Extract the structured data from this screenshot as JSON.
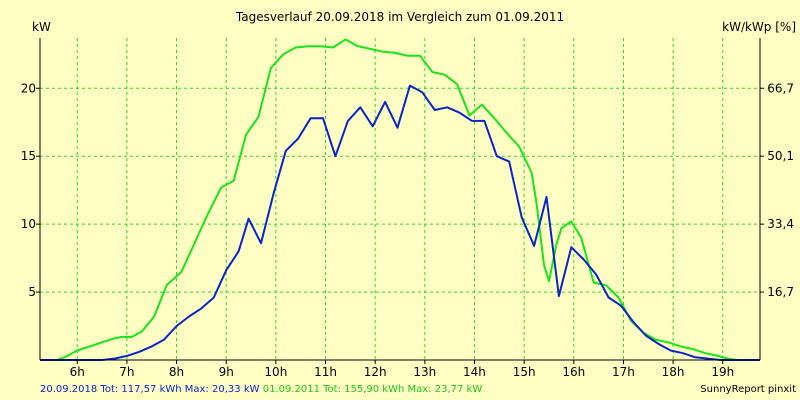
{
  "chart_data": {
    "type": "line",
    "title": "Tagesverlauf 20.09.2018 im Vergleich zum 01.09.2011",
    "ylabel": "kW",
    "ylabel_right": "kW/kWp [%]",
    "ylim": [
      0,
      23.7
    ],
    "xlim": [
      5.25,
      19.75
    ],
    "y_ticks": [
      5,
      10,
      15,
      20
    ],
    "y_right_ticks": [
      "16,7",
      "33,4",
      "50,1",
      "66,7"
    ],
    "x_ticks": [
      {
        "x": 6,
        "label": "6h"
      },
      {
        "x": 7,
        "label": "7h"
      },
      {
        "x": 8,
        "label": "8h"
      },
      {
        "x": 9,
        "label": "9h"
      },
      {
        "x": 10,
        "label": "10h"
      },
      {
        "x": 11,
        "label": "11h"
      },
      {
        "x": 12,
        "label": "12h"
      },
      {
        "x": 13,
        "label": "13h"
      },
      {
        "x": 14,
        "label": "14h"
      },
      {
        "x": 15,
        "label": "15h"
      },
      {
        "x": 16,
        "label": "16h"
      },
      {
        "x": 17,
        "label": "17h"
      },
      {
        "x": 18,
        "label": "18h"
      },
      {
        "x": 19,
        "label": "19h"
      }
    ],
    "grid": true,
    "series": [
      {
        "name": "01.09.2011",
        "color": "#19e419",
        "points": [
          [
            5.25,
            0
          ],
          [
            5.6,
            0
          ],
          [
            5.8,
            0.3
          ],
          [
            6.0,
            0.7
          ],
          [
            6.25,
            1.0
          ],
          [
            6.5,
            1.3
          ],
          [
            6.75,
            1.6
          ],
          [
            6.9,
            1.7
          ],
          [
            7.1,
            1.7
          ],
          [
            7.3,
            2.1
          ],
          [
            7.55,
            3.2
          ],
          [
            7.8,
            5.5
          ],
          [
            8.1,
            6.5
          ],
          [
            8.35,
            8.5
          ],
          [
            8.6,
            10.5
          ],
          [
            8.9,
            12.7
          ],
          [
            9.15,
            13.2
          ],
          [
            9.4,
            16.6
          ],
          [
            9.65,
            17.9
          ],
          [
            9.9,
            21.5
          ],
          [
            10.15,
            22.5
          ],
          [
            10.4,
            23.0
          ],
          [
            10.65,
            23.1
          ],
          [
            10.9,
            23.1
          ],
          [
            11.15,
            23.0
          ],
          [
            11.4,
            23.6
          ],
          [
            11.65,
            23.1
          ],
          [
            11.9,
            22.9
          ],
          [
            12.15,
            22.7
          ],
          [
            12.4,
            22.6
          ],
          [
            12.65,
            22.4
          ],
          [
            12.9,
            22.4
          ],
          [
            13.15,
            21.2
          ],
          [
            13.4,
            21.0
          ],
          [
            13.65,
            20.3
          ],
          [
            13.9,
            18.0
          ],
          [
            14.15,
            18.8
          ],
          [
            14.4,
            17.8
          ],
          [
            14.65,
            16.7
          ],
          [
            14.9,
            15.7
          ],
          [
            15.15,
            13.8
          ],
          [
            15.25,
            11.5
          ],
          [
            15.4,
            7.0
          ],
          [
            15.5,
            5.8
          ],
          [
            15.65,
            8.5
          ],
          [
            15.75,
            9.7
          ],
          [
            15.95,
            10.2
          ],
          [
            16.15,
            9.0
          ],
          [
            16.4,
            5.7
          ],
          [
            16.65,
            5.5
          ],
          [
            16.9,
            4.6
          ],
          [
            17.15,
            2.9
          ],
          [
            17.4,
            2.0
          ],
          [
            17.65,
            1.5
          ],
          [
            17.9,
            1.3
          ],
          [
            18.15,
            1.0
          ],
          [
            18.4,
            0.8
          ],
          [
            18.65,
            0.5
          ],
          [
            18.9,
            0.3
          ],
          [
            19.1,
            0.1
          ],
          [
            19.3,
            0
          ],
          [
            19.75,
            0
          ]
        ]
      },
      {
        "name": "20.09.2018",
        "color": "#0b24c8",
        "points": [
          [
            5.25,
            0
          ],
          [
            6.5,
            0
          ],
          [
            6.75,
            0.1
          ],
          [
            7.0,
            0.3
          ],
          [
            7.25,
            0.6
          ],
          [
            7.5,
            1.0
          ],
          [
            7.75,
            1.5
          ],
          [
            8.0,
            2.5
          ],
          [
            8.25,
            3.2
          ],
          [
            8.5,
            3.8
          ],
          [
            8.75,
            4.6
          ],
          [
            9.0,
            6.6
          ],
          [
            9.25,
            8.0
          ],
          [
            9.45,
            10.4
          ],
          [
            9.7,
            8.6
          ],
          [
            9.95,
            12.2
          ],
          [
            10.2,
            15.4
          ],
          [
            10.45,
            16.3
          ],
          [
            10.7,
            17.8
          ],
          [
            10.95,
            17.8
          ],
          [
            11.2,
            15.0
          ],
          [
            11.45,
            17.6
          ],
          [
            11.7,
            18.6
          ],
          [
            11.95,
            17.2
          ],
          [
            12.2,
            19.0
          ],
          [
            12.45,
            17.1
          ],
          [
            12.7,
            20.2
          ],
          [
            12.95,
            19.7
          ],
          [
            13.2,
            18.4
          ],
          [
            13.45,
            18.6
          ],
          [
            13.7,
            18.2
          ],
          [
            13.95,
            17.6
          ],
          [
            14.2,
            17.6
          ],
          [
            14.45,
            15.0
          ],
          [
            14.7,
            14.6
          ],
          [
            14.95,
            10.5
          ],
          [
            15.2,
            8.4
          ],
          [
            15.45,
            12.0
          ],
          [
            15.7,
            4.7
          ],
          [
            15.95,
            8.3
          ],
          [
            16.2,
            7.4
          ],
          [
            16.45,
            6.3
          ],
          [
            16.7,
            4.6
          ],
          [
            16.95,
            4.0
          ],
          [
            17.2,
            2.8
          ],
          [
            17.45,
            1.8
          ],
          [
            17.7,
            1.2
          ],
          [
            17.95,
            0.7
          ],
          [
            18.2,
            0.5
          ],
          [
            18.45,
            0.2
          ],
          [
            18.7,
            0.1
          ],
          [
            18.95,
            0
          ],
          [
            19.75,
            0
          ]
        ]
      }
    ]
  },
  "footer": {
    "series_2018_stats": "20.09.2018 Tot: 117,57 kWh Max: 20,33 kW",
    "series_2011_stats": "01.09.2011 Tot: 155,90 kWh Max: 23,77 kW",
    "credit": "SunnyReport pinxit"
  }
}
